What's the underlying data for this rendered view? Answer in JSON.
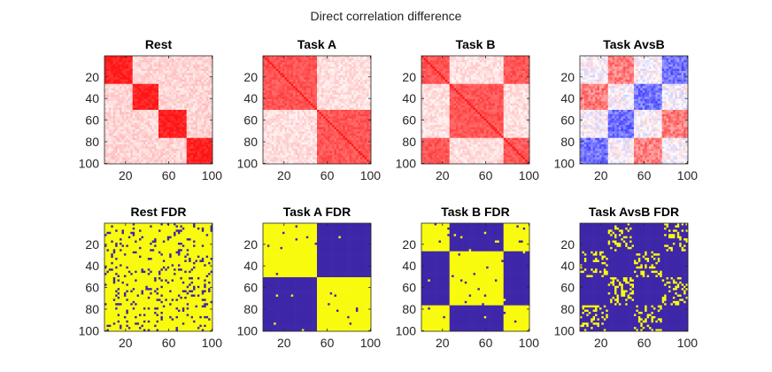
{
  "figure": {
    "suptitle": "Direct correlation difference"
  },
  "chart_data": [
    {
      "type": "heatmap",
      "title": "Rest",
      "x_ticks": [
        20,
        60,
        100
      ],
      "y_ticks": [
        20,
        40,
        60,
        80,
        100
      ],
      "xlim": [
        1,
        100
      ],
      "ylim": [
        1,
        100
      ],
      "colormap": "white-red",
      "block_pattern": [
        [
          1,
          0,
          0,
          0
        ],
        [
          0,
          1,
          0,
          0
        ],
        [
          0,
          0,
          1,
          0
        ],
        [
          0,
          0,
          0,
          1
        ]
      ],
      "block_values": {
        "1": 0.95,
        "0": 0.18
      },
      "diagonal_value": 1.0
    },
    {
      "type": "heatmap",
      "title": "Task A",
      "x_ticks": [
        20,
        60,
        100
      ],
      "y_ticks": [
        20,
        40,
        60,
        80,
        100
      ],
      "xlim": [
        1,
        100
      ],
      "ylim": [
        1,
        100
      ],
      "colormap": "white-red",
      "block_pattern": [
        [
          1,
          1,
          0,
          0
        ],
        [
          1,
          1,
          0,
          0
        ],
        [
          0,
          0,
          1,
          1
        ],
        [
          0,
          0,
          1,
          1
        ]
      ],
      "block_values": {
        "1": 0.72,
        "0": 0.14
      },
      "diagonal_value": 1.0
    },
    {
      "type": "heatmap",
      "title": "Task B",
      "x_ticks": [
        20,
        60,
        100
      ],
      "y_ticks": [
        20,
        40,
        60,
        80,
        100
      ],
      "xlim": [
        1,
        100
      ],
      "ylim": [
        1,
        100
      ],
      "colormap": "white-red",
      "block_pattern": [
        [
          1,
          0,
          0,
          1
        ],
        [
          0,
          1,
          1,
          0
        ],
        [
          0,
          1,
          1,
          0
        ],
        [
          1,
          0,
          0,
          1
        ]
      ],
      "block_values": {
        "1": 0.72,
        "0": 0.14
      },
      "diagonal_value": 1.0
    },
    {
      "type": "heatmap",
      "title": "Task AvsB",
      "x_ticks": [
        20,
        60,
        100
      ],
      "y_ticks": [
        20,
        40,
        60,
        80,
        100
      ],
      "xlim": [
        1,
        100
      ],
      "ylim": [
        1,
        100
      ],
      "colormap": "blue-white-red",
      "block_pattern": [
        [
          0,
          1,
          0,
          -1
        ],
        [
          1,
          0,
          -1,
          0
        ],
        [
          0,
          -1,
          0,
          1
        ],
        [
          -1,
          0,
          1,
          0
        ]
      ],
      "block_values": {
        "1": 0.6,
        "0": 0.0,
        "-1": -0.65
      }
    },
    {
      "type": "heatmap",
      "title": "Rest FDR",
      "x_ticks": [
        20,
        60,
        100
      ],
      "y_ticks": [
        20,
        40,
        60,
        80,
        100
      ],
      "xlim": [
        1,
        100
      ],
      "ylim": [
        1,
        100
      ],
      "colormap": "parula-binary",
      "block_pattern": [
        [
          1,
          1,
          1,
          1
        ],
        [
          1,
          1,
          1,
          1
        ],
        [
          1,
          1,
          1,
          1
        ],
        [
          1,
          1,
          1,
          1
        ]
      ],
      "block_values": {
        "1": 0.9
      },
      "noise_flip": 0.03
    },
    {
      "type": "heatmap",
      "title": "Task A FDR",
      "x_ticks": [
        20,
        60,
        100
      ],
      "y_ticks": [
        20,
        40,
        60,
        80,
        100
      ],
      "xlim": [
        1,
        100
      ],
      "ylim": [
        1,
        100
      ],
      "colormap": "parula-binary",
      "block_pattern": [
        [
          1,
          1,
          0,
          0
        ],
        [
          1,
          1,
          0,
          0
        ],
        [
          0,
          0,
          1,
          1
        ],
        [
          0,
          0,
          1,
          1
        ]
      ],
      "block_values": {
        "1": 0.99,
        "0": 0.0
      },
      "noise_flip": 0.005
    },
    {
      "type": "heatmap",
      "title": "Task B FDR",
      "x_ticks": [
        20,
        60,
        100
      ],
      "y_ticks": [
        20,
        40,
        60,
        80,
        100
      ],
      "xlim": [
        1,
        100
      ],
      "ylim": [
        1,
        100
      ],
      "colormap": "parula-binary",
      "block_pattern": [
        [
          1,
          0,
          0,
          1
        ],
        [
          0,
          1,
          1,
          0
        ],
        [
          0,
          1,
          1,
          0
        ],
        [
          1,
          0,
          0,
          1
        ]
      ],
      "block_values": {
        "1": 0.99,
        "0": 0.0
      },
      "noise_flip": 0.005
    },
    {
      "type": "heatmap",
      "title": "Task AvsB FDR",
      "x_ticks": [
        20,
        60,
        100
      ],
      "y_ticks": [
        20,
        40,
        60,
        80,
        100
      ],
      "xlim": [
        1,
        100
      ],
      "ylim": [
        1,
        100
      ],
      "colormap": "parula-binary",
      "block_pattern": [
        [
          0,
          1,
          0,
          1
        ],
        [
          1,
          0,
          1,
          0
        ],
        [
          0,
          1,
          0,
          1
        ],
        [
          1,
          0,
          1,
          0
        ]
      ],
      "block_values": {
        "1": 0.28,
        "0": 0.0
      },
      "noise_flip": 0.0
    }
  ]
}
